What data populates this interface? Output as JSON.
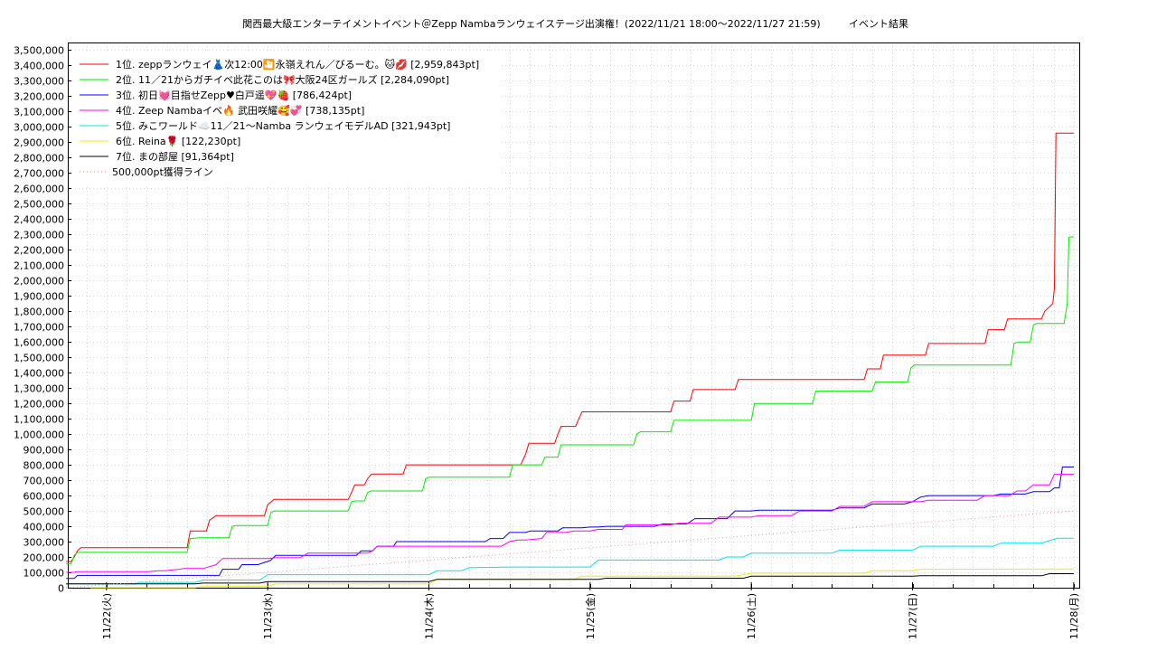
{
  "title": "関西最大級エンターテイメントイベント＠Zepp Nambaランウェイステージ出演権！(2022/11/21 18:00～2022/11/27 21:59)",
  "subtitle": "イベント結果",
  "chart_data": {
    "type": "line",
    "title": "関西最大級エンターテイメントイベント＠Zepp Nambaランウェイステージ出演権！(2022/11/21 18:00～2022/11/27 21:59)",
    "subtitle": "イベント結果",
    "x_ticks": [
      "11/22(火)",
      "11/23(水)",
      "11/24(木)",
      "11/25(金)",
      "11/26(土)",
      "11/27(日)",
      "11/28(月)"
    ],
    "xlim_days": [
      -0.24,
      6.04
    ],
    "ylim": [
      0,
      3550000
    ],
    "y_ticks": [
      "0",
      "100,000",
      "200,000",
      "300,000",
      "400,000",
      "500,000",
      "600,000",
      "700,000",
      "800,000",
      "900,000",
      "1,000,000",
      "1,100,000",
      "1,200,000",
      "1,300,000",
      "1,400,000",
      "1,500,000",
      "1,600,000",
      "1,700,000",
      "1,800,000",
      "1,900,000",
      "2,000,000",
      "2,100,000",
      "2,200,000",
      "2,300,000",
      "2,400,000",
      "2,500,000",
      "2,600,000",
      "2,700,000",
      "2,800,000",
      "2,900,000",
      "3,000,000",
      "3,100,000",
      "3,200,000",
      "3,300,000",
      "3,400,000",
      "3,500,000"
    ],
    "grid": true,
    "legend_position": "top-left",
    "series": [
      {
        "name": "1位. zeppランウェイ👗次12:00🎦永嶺えれん／びるーむ。🐱💋 [2,959,843pt]",
        "color": "#ff0000",
        "x": [
          -0.25,
          -0.22,
          -0.2,
          -0.18,
          -0.16,
          0.5,
          0.52,
          0.62,
          0.64,
          0.68,
          0.7,
          0.98,
          1.0,
          1.04,
          1.06,
          1.06,
          1.5,
          1.52,
          1.54,
          1.6,
          1.62,
          1.64,
          1.65,
          1.84,
          1.86,
          2.57,
          2.6,
          2.62,
          2.78,
          2.8,
          2.82,
          2.91,
          2.93,
          2.95,
          3.05,
          3.07,
          3.5,
          3.52,
          3.62,
          3.64,
          3.9,
          3.92,
          4.7,
          4.72,
          4.8,
          4.82,
          5.08,
          5.1,
          5.45,
          5.47,
          5.57,
          5.59,
          5.8,
          5.82,
          5.87,
          5.88,
          5.89,
          5.9,
          5.91,
          6.0
        ],
        "y": [
          170000,
          170000,
          200000,
          240000,
          260000,
          260000,
          370000,
          370000,
          440000,
          470000,
          470000,
          470000,
          540000,
          575000,
          575000,
          575000,
          575000,
          620000,
          670000,
          670000,
          710000,
          735000,
          740000,
          740000,
          800000,
          800000,
          870000,
          940000,
          940000,
          1000000,
          1050000,
          1050000,
          1100000,
          1145000,
          1145000,
          1145000,
          1145000,
          1215000,
          1215000,
          1290000,
          1290000,
          1355000,
          1355000,
          1425000,
          1425000,
          1515000,
          1515000,
          1590000,
          1590000,
          1680000,
          1680000,
          1750000,
          1750000,
          1800000,
          1850000,
          1950000,
          2960000,
          2960000,
          2960000,
          2960000
        ]
      },
      {
        "name": "2位. 11／21からガチイベ此花このは🎀大阪24区ガールズ [2,284,090pt]",
        "color": "#00ee00",
        "x": [
          -0.25,
          -0.22,
          -0.2,
          -0.18,
          0.5,
          0.52,
          0.58,
          0.76,
          0.78,
          0.8,
          1.0,
          1.02,
          1.04,
          1.5,
          1.52,
          1.54,
          1.6,
          1.62,
          1.64,
          1.96,
          1.98,
          2.0,
          2.5,
          2.52,
          2.7,
          2.72,
          2.8,
          2.82,
          3.27,
          3.29,
          3.31,
          3.5,
          3.52,
          4.0,
          4.02,
          4.38,
          4.4,
          4.75,
          4.77,
          4.97,
          4.99,
          5.01,
          5.61,
          5.63,
          5.66,
          5.73,
          5.75,
          5.77,
          5.94,
          5.96,
          5.97,
          5.98,
          6.0
        ],
        "y": [
          155000,
          155000,
          210000,
          230000,
          230000,
          320000,
          325000,
          325000,
          400000,
          405000,
          405000,
          490000,
          500000,
          500000,
          560000,
          565000,
          565000,
          620000,
          630000,
          630000,
          710000,
          720000,
          720000,
          800000,
          800000,
          850000,
          850000,
          930000,
          930000,
          1000000,
          1015000,
          1015000,
          1090000,
          1090000,
          1200000,
          1200000,
          1280000,
          1280000,
          1340000,
          1340000,
          1430000,
          1450000,
          1450000,
          1590000,
          1600000,
          1600000,
          1710000,
          1720000,
          1720000,
          1850000,
          2280000,
          2284000,
          2284000
        ]
      },
      {
        "name": "3位. 初日💓目指せZepp♥白戸遥💖🍓 [786,424pt]",
        "color": "#0000ff",
        "x": [
          -0.25,
          -0.2,
          -0.18,
          0.22,
          0.26,
          0.32,
          0.36,
          0.45,
          0.48,
          0.55,
          0.58,
          0.7,
          0.72,
          0.82,
          0.84,
          0.94,
          0.98,
          1.0,
          1.02,
          1.05,
          1.1,
          1.15,
          1.55,
          1.58,
          1.65,
          1.68,
          1.78,
          1.8,
          1.86,
          1.88,
          2.35,
          2.38,
          2.46,
          2.5,
          2.6,
          2.63,
          2.8,
          2.83,
          2.95,
          3.0,
          3.05,
          3.1,
          3.4,
          3.45,
          3.6,
          3.65,
          3.85,
          3.9,
          4.0,
          4.05,
          4.1,
          4.15,
          4.5,
          4.55,
          4.7,
          4.75,
          4.95,
          5.0,
          5.05,
          5.1,
          5.5,
          5.55,
          5.7,
          5.75,
          5.85,
          5.88,
          5.91,
          5.93,
          6.0
        ],
        "y": [
          60000,
          60000,
          80000,
          80000,
          80000,
          80000,
          80000,
          80000,
          80000,
          80000,
          80000,
          80000,
          120000,
          120000,
          150000,
          150000,
          165000,
          170000,
          180000,
          210000,
          210000,
          210000,
          210000,
          240000,
          240000,
          270000,
          270000,
          300000,
          300000,
          300000,
          300000,
          320000,
          320000,
          360000,
          360000,
          370000,
          370000,
          390000,
          390000,
          395000,
          395000,
          400000,
          400000,
          415000,
          415000,
          450000,
          450000,
          500000,
          500000,
          505000,
          505000,
          505000,
          505000,
          520000,
          520000,
          545000,
          545000,
          560000,
          590000,
          600000,
          600000,
          610000,
          610000,
          625000,
          625000,
          650000,
          650000,
          786000,
          786000
        ]
      },
      {
        "name": "4位. Zeep Nambaイベ🔥 武田咲耀🥰💞 [738,135pt]",
        "color": "#ff00ff",
        "x": [
          -0.25,
          -0.2,
          -0.18,
          0.22,
          0.26,
          0.32,
          0.36,
          0.45,
          0.48,
          0.6,
          0.68,
          0.72,
          0.78,
          1.0,
          1.05,
          1.2,
          1.25,
          1.62,
          1.65,
          1.68,
          1.76,
          1.8,
          1.86,
          1.88,
          2.45,
          2.5,
          2.55,
          2.6,
          2.7,
          2.73,
          2.85,
          2.9,
          3.0,
          3.05,
          3.2,
          3.22,
          3.5,
          3.55,
          3.6,
          3.75,
          3.8,
          4.0,
          4.05,
          4.25,
          4.3,
          4.5,
          4.55,
          4.7,
          4.75,
          5.05,
          5.1,
          5.1,
          5.4,
          5.45,
          5.6,
          5.65,
          5.7,
          5.75,
          5.85,
          5.88,
          6.0
        ],
        "y": [
          100000,
          100000,
          105000,
          105000,
          105000,
          110000,
          110000,
          120000,
          125000,
          125000,
          150000,
          190000,
          190000,
          190000,
          195000,
          195000,
          225000,
          225000,
          240000,
          270000,
          270000,
          270000,
          270000,
          270000,
          270000,
          300000,
          310000,
          310000,
          320000,
          360000,
          360000,
          370000,
          370000,
          380000,
          380000,
          410000,
          410000,
          420000,
          420000,
          420000,
          460000,
          460000,
          470000,
          470000,
          500000,
          500000,
          530000,
          530000,
          560000,
          560000,
          570000,
          570000,
          570000,
          600000,
          600000,
          630000,
          630000,
          670000,
          670000,
          738000,
          738000
        ]
      },
      {
        "name": "5位. みこワールド☁️11／21〜Namba ランウェイモデルAD [321,943pt]",
        "color": "#00e5e5",
        "x": [
          -0.25,
          0.18,
          0.2,
          0.55,
          0.6,
          0.95,
          1.0,
          2.0,
          2.05,
          2.2,
          2.25,
          2.5,
          3.0,
          3.05,
          3.8,
          3.85,
          3.95,
          4.0,
          4.5,
          4.55,
          5.0,
          5.05,
          5.5,
          5.55,
          5.8,
          5.9,
          6.0
        ],
        "y": [
          25000,
          25000,
          35000,
          35000,
          50000,
          50000,
          85000,
          85000,
          110000,
          110000,
          130000,
          135000,
          135000,
          180000,
          180000,
          200000,
          200000,
          225000,
          225000,
          245000,
          245000,
          270000,
          270000,
          290000,
          290000,
          322000,
          322000
        ]
      },
      {
        "name": "6位. Reina🌹 [122,230pt]",
        "color": "#eeee00",
        "x": [
          -0.1,
          0.55,
          0.6,
          1.0,
          1.05,
          2.0,
          2.05,
          2.9,
          2.95,
          3.9,
          4.0,
          4.7,
          4.75,
          5.0,
          5.05,
          6.0
        ],
        "y": [
          0,
          0,
          10000,
          10000,
          25000,
          25000,
          55000,
          55000,
          75000,
          75000,
          95000,
          95000,
          110000,
          110000,
          120000,
          122000
        ]
      },
      {
        "name": "7位. まの部屋 [91,364pt]",
        "color": "#000000",
        "x": [
          -0.25,
          0.0,
          0.55,
          0.6,
          0.95,
          1.0,
          2.0,
          2.05,
          3.05,
          3.1,
          3.95,
          4.0,
          5.0,
          5.05,
          5.8,
          5.85,
          6.0
        ],
        "y": [
          25000,
          25000,
          25000,
          30000,
          30000,
          40000,
          40000,
          55000,
          55000,
          62000,
          62000,
          75000,
          75000,
          78000,
          78000,
          91000,
          91000
        ]
      },
      {
        "name": "500,000pt獲得ライン",
        "color": "#d9a0a0",
        "dashed": true,
        "x": [
          -0.25,
          6.0
        ],
        "y": [
          0,
          500000
        ]
      }
    ]
  }
}
